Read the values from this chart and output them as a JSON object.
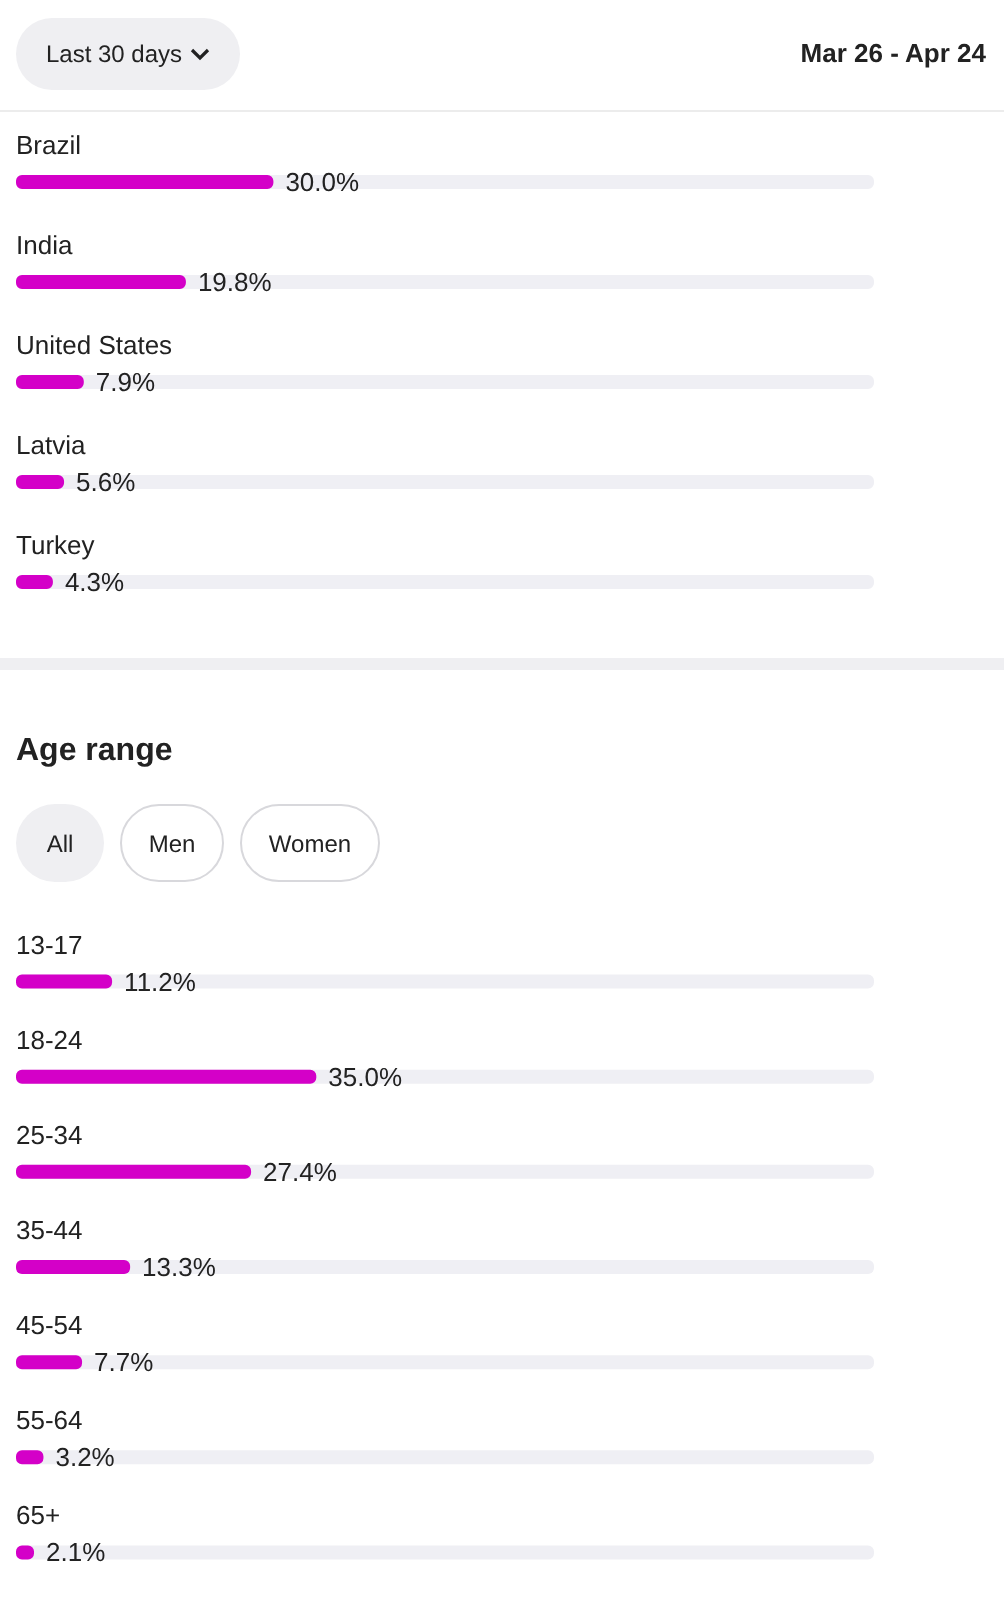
{
  "chart_data": [
    {
      "type": "bar",
      "orientation": "horizontal",
      "annotations": [
        "Last 30 days",
        "Mar 26 - Apr 24"
      ],
      "categories": [
        "Brazil",
        "India",
        "United States",
        "Latvia",
        "Turkey"
      ],
      "values": [
        30.0,
        19.8,
        7.9,
        5.6,
        4.3
      ],
      "value_labels": [
        "30.0%",
        "19.8%",
        "7.9%",
        "5.6%",
        "4.3%"
      ],
      "color": "#d400c8",
      "xlim": [
        0,
        100
      ],
      "tick_labels": "y"
    },
    {
      "type": "bar",
      "orientation": "horizontal",
      "title": "Age range",
      "annotations": [
        "All",
        "Men",
        "Women"
      ],
      "categories": [
        "13-17",
        "18-24",
        "25-34",
        "35-44",
        "45-54",
        "55-64",
        "65+"
      ],
      "values": [
        11.2,
        35.0,
        27.4,
        13.3,
        7.7,
        3.2,
        2.1
      ],
      "value_labels": [
        "11.2%",
        "35.0%",
        "27.4%",
        "13.3%",
        "7.7%",
        "3.2%",
        "2.1%"
      ],
      "color": "#d400c8",
      "xlim": [
        0,
        100
      ],
      "tick_labels": "y"
    }
  ]
}
